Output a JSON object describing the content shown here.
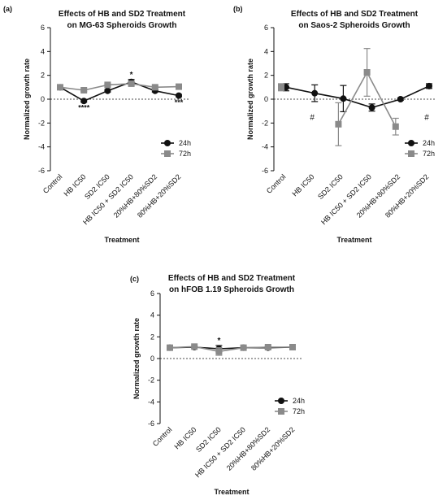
{
  "chart_data": [
    {
      "panel": "(a)",
      "type": "line",
      "title": [
        "Effects of HB and SD2 Treatment",
        "on MG-63 Spheroids Growth"
      ],
      "xlabel": "Treatment",
      "ylabel": "Normalized growth rate",
      "ylim": [
        -6,
        6
      ],
      "yticks": [
        -6,
        -4,
        -2,
        0,
        2,
        4,
        6
      ],
      "categories": [
        "Control",
        "HB IC50",
        "SD2 IC50",
        "HB IC50 + SD2 IC50",
        "20%HB+80%SD2",
        "80%HB+20%SD2"
      ],
      "reference_line": 0,
      "legend": {
        "position": "right",
        "entries": [
          "24h",
          "72h"
        ]
      },
      "series": [
        {
          "name": "24h",
          "color": "#111111",
          "marker": "circle",
          "values": [
            1.0,
            -0.15,
            0.7,
            1.45,
            0.7,
            0.3
          ],
          "errors": [
            0.05,
            0.1,
            0.1,
            0.2,
            0.1,
            0.1
          ]
        },
        {
          "name": "72h",
          "color": "#8a8a8a",
          "marker": "square",
          "values": [
            1.0,
            0.75,
            1.2,
            1.3,
            1.0,
            1.05
          ],
          "errors": [
            0.05,
            0.1,
            0.1,
            0.15,
            0.1,
            0.1
          ]
        }
      ],
      "annotations": [
        {
          "category": "HB IC50",
          "text": "****",
          "position": "below"
        },
        {
          "category": "HB IC50 + SD2 IC50",
          "text": "*",
          "position": "above"
        },
        {
          "category": "80%HB+20%SD2",
          "text": "***",
          "position": "below"
        }
      ]
    },
    {
      "panel": "(b)",
      "type": "line",
      "title": [
        "Effects of HB and SD2 Treatment",
        "on Saos-2 Spheroids Growth"
      ],
      "xlabel": "Treatment",
      "ylabel": "Normalized growth rate",
      "ylim": [
        -6,
        6
      ],
      "yticks": [
        -6,
        -4,
        -2,
        0,
        2,
        4,
        6
      ],
      "categories": [
        "Control",
        "HB IC50",
        "SD2 IC50",
        "HB IC50 + SD2 IC50",
        "20%HB+80%SD2",
        "80%HB+20%SD2"
      ],
      "reference_line": 0,
      "legend": {
        "position": "right",
        "entries": [
          "24h",
          "72h"
        ]
      },
      "series": [
        {
          "name": "24h",
          "color": "#111111",
          "marker": "circle",
          "values": [
            1.0,
            0.5,
            0.05,
            -0.7,
            0.0,
            1.1
          ],
          "errors": [
            0.3,
            0.7,
            1.1,
            0.3,
            0.1,
            0.2
          ]
        },
        {
          "name": "72h",
          "color": "#8a8a8a",
          "marker": "square",
          "values": [
            1.0,
            null,
            -2.1,
            2.25,
            -2.3,
            null
          ],
          "errors": [
            0.3,
            null,
            1.8,
            2.0,
            0.7,
            null
          ]
        }
      ],
      "annotations": [
        {
          "category": "HB IC50",
          "text": "#",
          "position": "below"
        },
        {
          "category": "80%HB+20%SD2",
          "text": "#",
          "position": "below"
        }
      ]
    },
    {
      "panel": "(c)",
      "type": "line",
      "title": [
        "Effects of HB and SD2 Treatment",
        "on hFOB 1.19 Spheroids Growth"
      ],
      "xlabel": "Treatment",
      "ylabel": "Normalized growth rate",
      "ylim": [
        -6,
        6
      ],
      "yticks": [
        -6,
        -4,
        -2,
        0,
        2,
        4,
        6
      ],
      "categories": [
        "Control",
        "HB IC50",
        "SD2 IC50",
        "HB IC50 + SD2 IC50",
        "20%HB+80%SD2",
        "80%HB+20%SD2"
      ],
      "reference_line": 0,
      "legend": {
        "position": "right",
        "entries": [
          "24h",
          "72h"
        ]
      },
      "series": [
        {
          "name": "24h",
          "color": "#111111",
          "marker": "circle",
          "values": [
            1.0,
            1.05,
            0.9,
            1.0,
            1.0,
            1.05
          ],
          "errors": [
            0.05,
            0.05,
            0.3,
            0.05,
            0.1,
            0.05
          ]
        },
        {
          "name": "72h",
          "color": "#8a8a8a",
          "marker": "square",
          "values": [
            1.0,
            1.1,
            0.65,
            1.0,
            1.05,
            1.05
          ],
          "errors": [
            0.05,
            0.05,
            0.35,
            0.05,
            0.1,
            0.05
          ]
        }
      ],
      "annotations": [
        {
          "category": "SD2 IC50",
          "text": "*",
          "position": "above"
        }
      ]
    }
  ]
}
